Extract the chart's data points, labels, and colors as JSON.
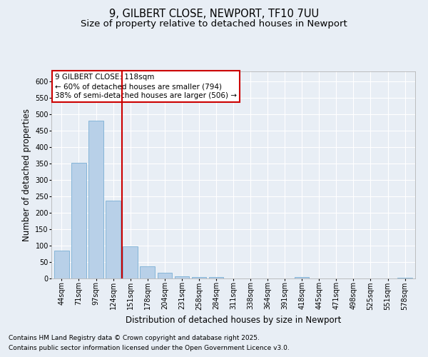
{
  "title_line1": "9, GILBERT CLOSE, NEWPORT, TF10 7UU",
  "title_line2": "Size of property relative to detached houses in Newport",
  "xlabel": "Distribution of detached houses by size in Newport",
  "ylabel": "Number of detached properties",
  "categories": [
    "44sqm",
    "71sqm",
    "97sqm",
    "124sqm",
    "151sqm",
    "178sqm",
    "204sqm",
    "231sqm",
    "258sqm",
    "284sqm",
    "311sqm",
    "338sqm",
    "364sqm",
    "391sqm",
    "418sqm",
    "445sqm",
    "471sqm",
    "498sqm",
    "525sqm",
    "551sqm",
    "578sqm"
  ],
  "values": [
    85,
    353,
    480,
    237,
    97,
    38,
    18,
    6,
    5,
    4,
    0,
    0,
    0,
    0,
    5,
    0,
    0,
    0,
    0,
    0,
    3
  ],
  "bar_color": "#b8d0e8",
  "bar_edge_color": "#7aafd4",
  "vline_x_index": 3,
  "vline_color": "#cc0000",
  "annotation_title": "9 GILBERT CLOSE: 118sqm",
  "annotation_line1": "← 60% of detached houses are smaller (794)",
  "annotation_line2": "38% of semi-detached houses are larger (506) →",
  "annotation_box_color": "white",
  "annotation_box_edge": "#cc0000",
  "ylim": [
    0,
    630
  ],
  "yticks": [
    0,
    50,
    100,
    150,
    200,
    250,
    300,
    350,
    400,
    450,
    500,
    550,
    600
  ],
  "footnote1": "Contains HM Land Registry data © Crown copyright and database right 2025.",
  "footnote2": "Contains public sector information licensed under the Open Government Licence v3.0.",
  "bg_color": "#e8eef5",
  "plot_bg_color": "#e8eef5",
  "grid_color": "#ffffff",
  "title_fontsize": 10.5,
  "subtitle_fontsize": 9.5,
  "axis_label_fontsize": 8.5,
  "tick_fontsize": 7,
  "annotation_fontsize": 7.5,
  "footnote_fontsize": 6.5
}
